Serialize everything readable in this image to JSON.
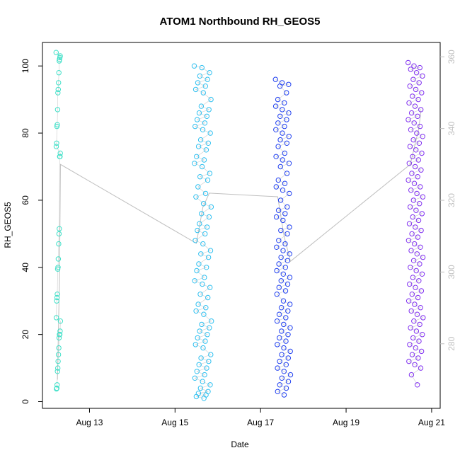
{
  "chart_data": {
    "type": "scatter",
    "title": "ATOM1 Northbound RH_GEOS5",
    "xlabel": "Date",
    "ylabel": "RH_GEOS5",
    "x_ticks": [
      "Aug 13",
      "Aug 15",
      "Aug 17",
      "Aug 19",
      "Aug 21"
    ],
    "x_tick_days": [
      13,
      15,
      17,
      19,
      21
    ],
    "xlim_days": [
      11.9,
      21.2
    ],
    "y_ticks": [
      0,
      20,
      40,
      60,
      80,
      100
    ],
    "ylim": [
      -2,
      107
    ],
    "y2_ticks": [
      280,
      300,
      320,
      340,
      360
    ],
    "y2lim": [
      262,
      364
    ],
    "marker": "open-circle",
    "colors": {
      "flight1": "#40E0C8",
      "flight2": "#30C0F0",
      "flight3": "#2040F0",
      "flight4": "#8030F0",
      "line": "#bfbfbf",
      "axis": "#000000",
      "right_axis": "#bfbfbf"
    },
    "series": [
      {
        "color_key": "flight1",
        "day_range": [
          12.22,
          12.32
        ],
        "values": [
          104,
          103,
          102.5,
          102,
          101.5,
          98,
          95,
          93,
          92,
          87,
          82.5,
          82,
          77,
          76,
          74,
          73,
          73,
          51.5,
          50,
          47,
          42.5,
          40,
          39.5,
          32,
          31,
          30,
          25,
          24,
          21,
          20,
          20,
          19,
          16,
          14,
          12,
          10,
          9,
          5,
          4,
          3.8
        ]
      },
      {
        "color_key": "flight2",
        "day_range": [
          15.45,
          15.85
        ],
        "values": [
          100,
          99.5,
          98,
          97,
          96,
          95,
          94,
          93,
          92,
          90,
          88,
          87,
          86,
          85,
          84,
          83,
          82,
          81,
          80,
          78,
          77,
          76,
          75,
          73,
          72,
          71,
          70,
          68,
          67,
          66,
          64,
          62,
          61,
          59,
          58,
          56,
          55,
          53,
          52,
          51,
          50,
          48,
          47,
          45,
          44,
          43,
          41,
          40,
          39,
          37,
          36,
          35,
          34,
          32,
          31,
          29,
          28,
          27,
          26,
          24,
          23,
          22,
          21,
          20,
          19,
          18,
          17,
          16,
          14,
          13,
          12,
          11,
          10,
          9,
          8,
          7,
          6,
          5,
          4,
          3,
          2.5,
          2,
          1.5,
          1
        ]
      },
      {
        "color_key": "flight3",
        "day_range": [
          17.35,
          17.7
        ],
        "values": [
          96,
          95,
          94.5,
          94,
          92,
          90,
          89,
          88,
          87,
          86,
          85,
          84,
          83,
          82,
          81,
          80,
          79,
          78,
          77,
          76,
          74,
          73,
          72,
          71,
          70,
          68,
          66,
          65,
          64,
          63,
          62,
          60,
          58,
          57,
          56,
          55,
          54,
          52,
          51,
          50,
          48,
          47,
          46,
          45,
          44,
          43,
          42,
          41,
          40,
          39,
          38,
          37,
          36,
          35,
          34,
          33,
          32,
          30,
          29,
          28,
          27,
          26,
          25,
          24,
          23,
          22,
          21,
          20,
          19,
          18,
          17,
          16,
          15,
          14,
          13,
          12,
          11,
          10,
          9,
          8,
          7,
          6,
          5,
          4,
          3,
          2
        ]
      },
      {
        "color_key": "flight4",
        "day_range": [
          20.45,
          20.8
        ],
        "values": [
          101,
          100,
          99.5,
          99,
          98,
          97,
          96,
          95,
          94,
          93,
          92,
          91,
          90,
          89,
          88,
          87,
          86,
          85,
          84,
          83,
          82,
          81,
          80,
          79,
          78,
          77,
          76,
          75,
          74,
          73,
          72,
          71,
          70,
          69,
          68,
          67,
          66,
          65,
          64,
          63,
          62,
          61,
          60,
          59,
          58,
          57,
          56,
          55,
          54,
          53,
          52,
          51,
          50,
          49,
          48,
          47,
          46,
          45,
          44,
          43,
          42,
          41,
          40,
          39,
          38,
          37,
          36,
          35,
          34,
          33,
          32,
          31,
          30,
          29,
          28,
          27,
          26,
          25,
          24,
          23,
          22,
          21,
          20,
          19,
          18,
          17,
          16,
          15,
          14,
          13,
          12,
          11,
          10,
          8,
          5
        ]
      }
    ],
    "line_series": {
      "axis": "right",
      "points": [
        {
          "day": 12.25,
          "value": 270
        },
        {
          "day": 12.3,
          "value": 300
        },
        {
          "day": 12.32,
          "value": 330
        },
        {
          "day": 15.5,
          "value": 308
        },
        {
          "day": 15.65,
          "value": 318
        },
        {
          "day": 15.8,
          "value": 322
        },
        {
          "day": 17.4,
          "value": 321
        },
        {
          "day": 17.55,
          "value": 310
        },
        {
          "day": 17.7,
          "value": 303
        },
        {
          "day": 20.5,
          "value": 330
        },
        {
          "day": 20.7,
          "value": 340
        },
        {
          "day": 20.75,
          "value": 345
        }
      ]
    }
  }
}
